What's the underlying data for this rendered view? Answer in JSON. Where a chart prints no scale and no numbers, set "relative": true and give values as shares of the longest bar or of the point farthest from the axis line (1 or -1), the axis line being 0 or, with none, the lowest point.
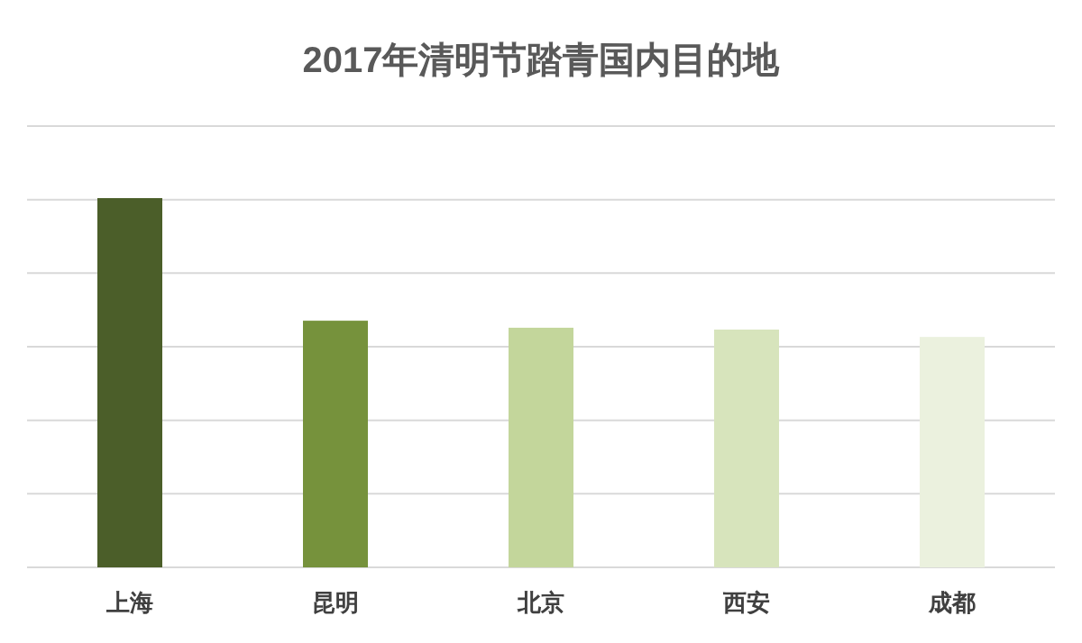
{
  "chart_data": {
    "type": "bar",
    "title": "2017年清明节踏青国内目的地",
    "relative": true,
    "grid": "y",
    "categories": [
      "上海",
      "昆明",
      "北京",
      "西安",
      "成都"
    ],
    "values": [
      1,
      0.668,
      0.649,
      0.644,
      0.624
    ],
    "colors": [
      "#4b5e29",
      "#76923c",
      "#c3d69b",
      "#d7e4bc",
      "#ebf1de"
    ]
  }
}
